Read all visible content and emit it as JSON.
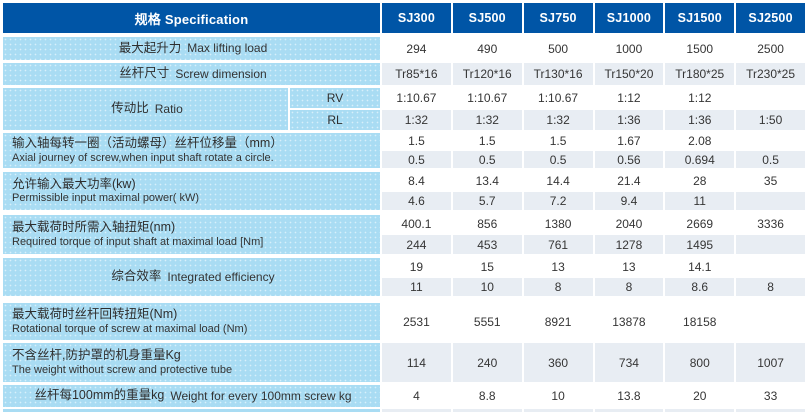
{
  "header": {
    "spec_label": "规格  Specification",
    "models": [
      "SJ300",
      "SJ500",
      "SJ750",
      "SJ1000",
      "SJ1500",
      "SJ2500"
    ]
  },
  "colors": {
    "header_blue": "#0055a6",
    "label_blue": "#a9dcf3",
    "row_gray": "#e8edf3",
    "row_white": "#ffffff"
  },
  "groups": [
    {
      "id": "max-lifting-load",
      "zh": "最大起升力",
      "en": "Max lifting load",
      "inline": true,
      "subrows": [
        {
          "values": [
            "294",
            "490",
            "500",
            "1000",
            "1500",
            "2500"
          ]
        }
      ]
    },
    {
      "id": "screw-dimension",
      "zh": "丝杆尺寸",
      "en": "Screw dimension",
      "inline": true,
      "subrows": [
        {
          "values": [
            "Tr85*16",
            "Tr120*16",
            "Tr130*16",
            "Tr150*20",
            "Tr180*25",
            "Tr230*25"
          ]
        }
      ]
    },
    {
      "id": "ratio",
      "zh": "传动比",
      "en": "Ratio",
      "inline": true,
      "subrows": [
        {
          "sub": "RV",
          "values": [
            "1:10.67",
            "1:10.67",
            "1:10.67",
            "1:12",
            "1:12",
            ""
          ]
        },
        {
          "sub": "RL",
          "values": [
            "1:32",
            "1:32",
            "1:32",
            "1:36",
            "1:36",
            "1:50"
          ]
        }
      ]
    },
    {
      "id": "axial-journey",
      "zh": "输入轴每转一圈（活动螺母）丝杆位移量（mm）",
      "en": "Axial journey of screw,when input shaft rotate a circle.",
      "subrows": [
        {
          "values": [
            "1.5",
            "1.5",
            "1.5",
            "1.67",
            "2.08",
            ""
          ]
        },
        {
          "values": [
            "0.5",
            "0.5",
            "0.5",
            "0.56",
            "0.694",
            "0.5"
          ]
        }
      ]
    },
    {
      "id": "max-input-power",
      "zh": "允许输入最大功率(kw)",
      "en": "Permissible input maximal power( kW)",
      "subrows": [
        {
          "values": [
            "8.4",
            "13.4",
            "14.4",
            "21.4",
            "28",
            "35"
          ]
        },
        {
          "values": [
            "4.6",
            "5.7",
            "7.2",
            "9.4",
            "11",
            ""
          ]
        }
      ]
    },
    {
      "id": "required-input-torque",
      "zh": "最大载荷时所需入轴扭矩(nm)",
      "en": "Required torque of input shaft at maximal load [Nm]",
      "subrows": [
        {
          "values": [
            "400.1",
            "856",
            "1380",
            "2040",
            "2669",
            "3336"
          ]
        },
        {
          "values": [
            "244",
            "453",
            "761",
            "1278",
            "1495",
            ""
          ]
        }
      ]
    },
    {
      "id": "integrated-efficiency",
      "zh": "综合效率",
      "en": "Integrated efficiency",
      "inline": true,
      "subrows": [
        {
          "values": [
            "19",
            "15",
            "13",
            "13",
            "14.1",
            ""
          ]
        },
        {
          "values": [
            "11",
            "10",
            "8",
            "8",
            "8.6",
            "8"
          ]
        }
      ]
    },
    {
      "id": "rotational-torque",
      "zh": "最大载荷时丝杆回转扭矩(Nm)",
      "en": "Rotational torque of screw at maximal load  (Nm)",
      "subrows": [
        {
          "values": [
            "2531",
            "5551",
            "8921",
            "13878",
            "18158",
            ""
          ]
        }
      ]
    },
    {
      "id": "body-weight",
      "zh": "不含丝杆,防护罩的机身重量Kg",
      "en": "The weight without screw and protective tube",
      "subrows": [
        {
          "values": [
            "114",
            "240",
            "360",
            "734",
            "800",
            "1007"
          ]
        }
      ]
    },
    {
      "id": "screw-weight-per-100mm",
      "zh": "丝杆每100mm的重量kg",
      "en": "Weight for every 100mm screw kg",
      "inline": true,
      "subrows": [
        {
          "values": [
            "4",
            "8.8",
            "10",
            "13.8",
            "20",
            "33"
          ]
        }
      ]
    }
  ]
}
